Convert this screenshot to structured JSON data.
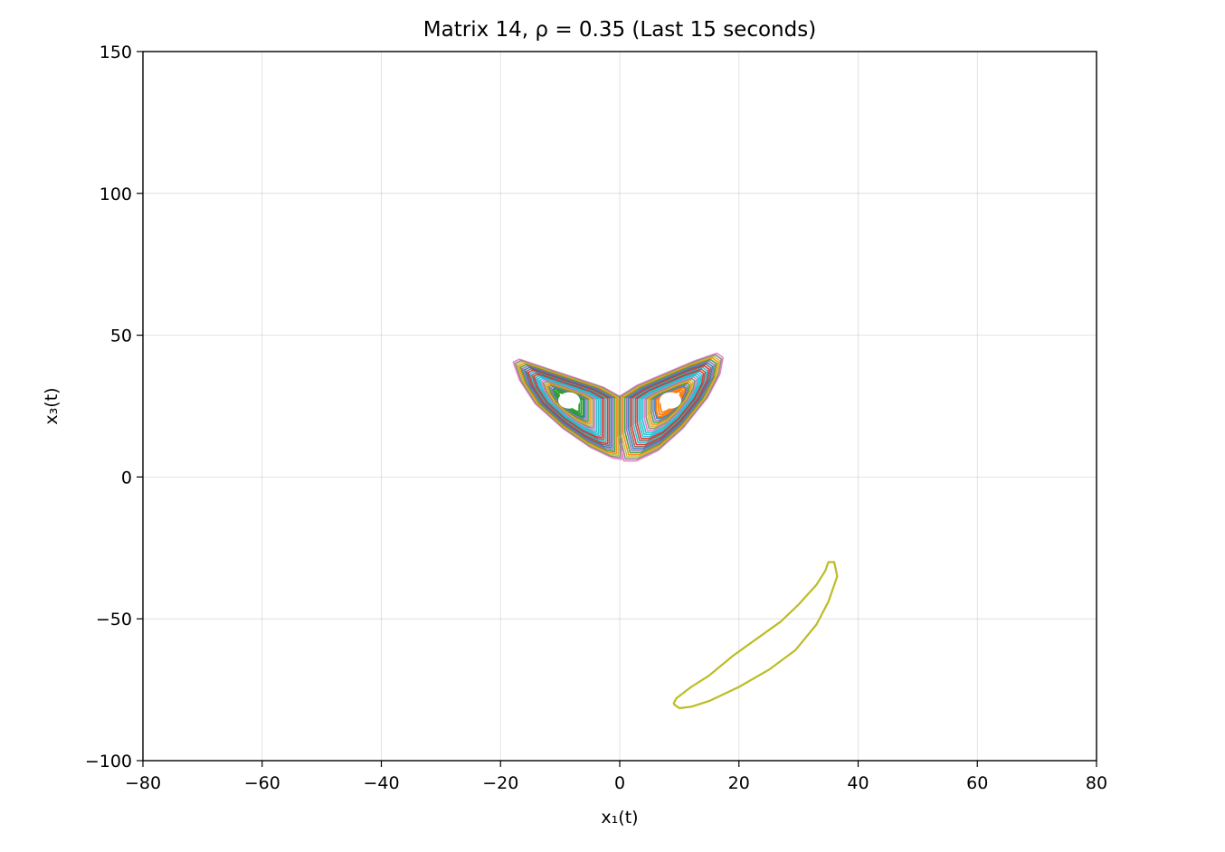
{
  "chart_data": {
    "type": "line",
    "title": "Matrix 14, ρ = 0.35 (Last 15 seconds)",
    "xlabel": "x₁(t)",
    "ylabel": "x₃(t)",
    "xlim": [
      -80,
      80
    ],
    "ylim": [
      -100,
      150
    ],
    "xticks": [
      -80,
      -60,
      -40,
      -20,
      0,
      20,
      40,
      60,
      80
    ],
    "yticks": [
      -100,
      -50,
      0,
      50,
      100,
      150
    ],
    "xtick_labels": [
      "−80",
      "−60",
      "−40",
      "−20",
      "0",
      "20",
      "40",
      "60",
      "80"
    ],
    "ytick_labels": [
      "−100",
      "−50",
      "0",
      "50",
      "100",
      "150"
    ],
    "grid": true,
    "legend": "none",
    "series": [
      {
        "kind": "butterfly-attractor",
        "colors": [
          "#1f77b4",
          "#ff7f0e",
          "#2ca02c",
          "#d62728",
          "#9467bd",
          "#8c564b",
          "#e377c2",
          "#7f7f7f",
          "#17becf"
        ],
        "x_range": [
          -18,
          17.5
        ],
        "y_range": [
          4,
          46
        ],
        "left_eye": [
          -8.5,
          27
        ],
        "right_eye": [
          8.5,
          27
        ]
      },
      {
        "kind": "limit-cycle",
        "color": "#bcbd22",
        "points": [
          [
            9,
            -80
          ],
          [
            9.5,
            -78
          ],
          [
            12,
            -74
          ],
          [
            15,
            -70
          ],
          [
            19,
            -63
          ],
          [
            23,
            -57
          ],
          [
            27,
            -51
          ],
          [
            30,
            -45
          ],
          [
            33,
            -38
          ],
          [
            34.5,
            -33
          ],
          [
            35,
            -30
          ],
          [
            36,
            -30
          ],
          [
            36.5,
            -35
          ],
          [
            35,
            -44
          ],
          [
            33,
            -52
          ],
          [
            29.5,
            -61
          ],
          [
            25,
            -68
          ],
          [
            20,
            -74
          ],
          [
            15,
            -79
          ],
          [
            12,
            -81
          ],
          [
            10,
            -81.5
          ],
          [
            9,
            -80
          ]
        ]
      }
    ]
  }
}
